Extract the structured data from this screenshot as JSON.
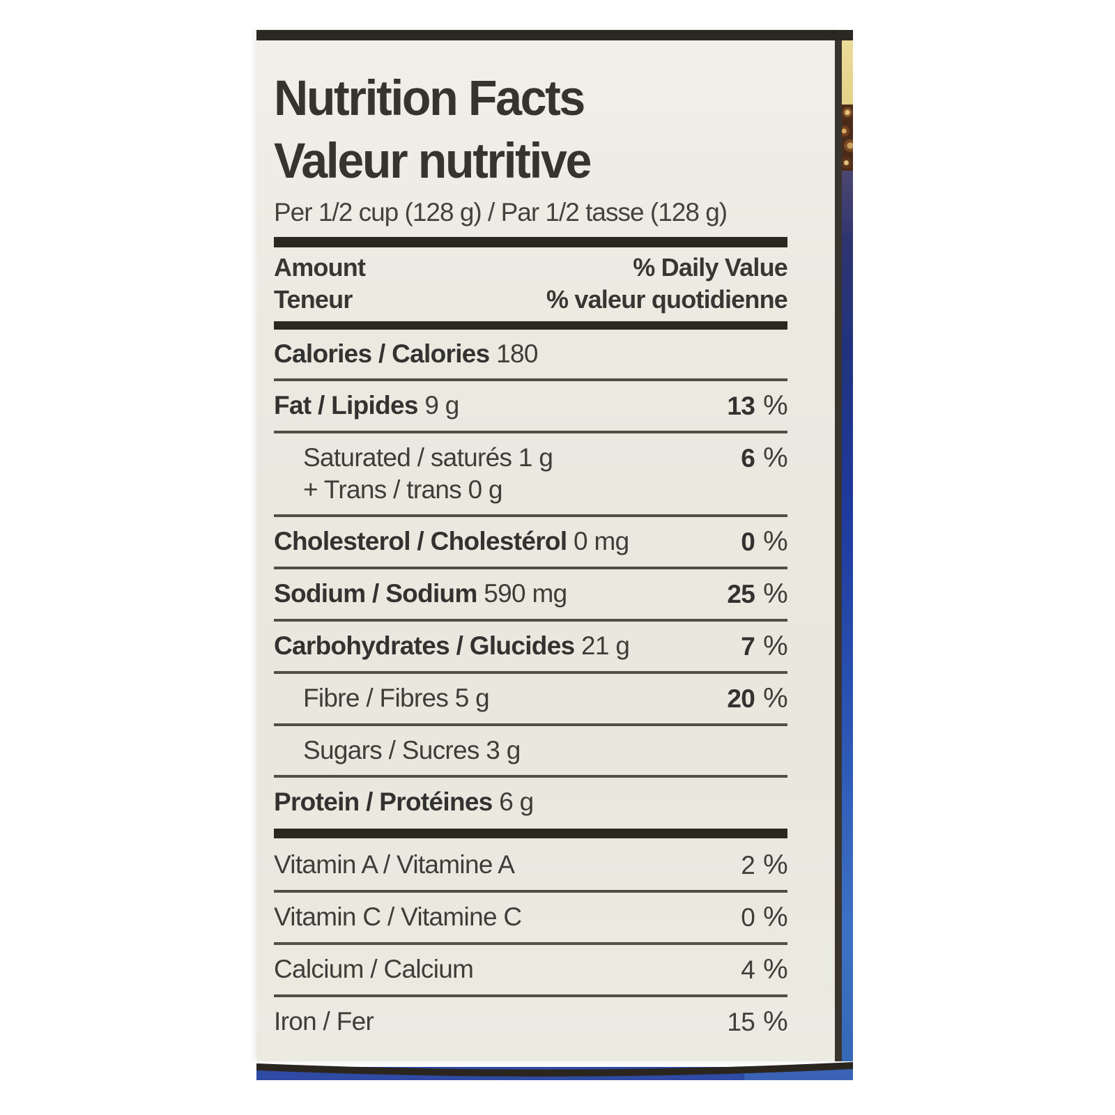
{
  "label": {
    "title_en": "Nutrition Facts",
    "title_fr": "Valeur nutritive",
    "serving_line": "Per 1/2 cup (128 g) / Par 1/2 tasse (128 g)",
    "header": {
      "amount_en": "Amount",
      "amount_fr": "Teneur",
      "daily_value_en": "% Daily Value",
      "daily_value_fr": "% valeur quotidienne"
    },
    "rows": [
      {
        "name_bold": "Calories / Calories",
        "amount": "180",
        "percent": null,
        "percent_bold": false,
        "indent": false,
        "sep_after": "single"
      },
      {
        "name_bold": "Fat / Lipides",
        "amount": "9 g",
        "percent": "13 %",
        "percent_bold": true,
        "indent": false,
        "sep_after": "single"
      },
      {
        "name": "Saturated / saturés 1 g",
        "line2": "+ Trans / trans 0 g",
        "percent": "6 %",
        "percent_bold": true,
        "indent": true,
        "sep_after": "single"
      },
      {
        "name_bold": "Cholesterol / Cholestérol",
        "amount": "0 mg",
        "percent": "0 %",
        "percent_bold": true,
        "indent": false,
        "sep_after": "single"
      },
      {
        "name_bold": "Sodium / Sodium",
        "amount": "590 mg",
        "percent": "25 %",
        "percent_bold": true,
        "indent": false,
        "sep_after": "single"
      },
      {
        "name_bold": "Carbohydrates / Glucides",
        "amount": "21 g",
        "percent": "7 %",
        "percent_bold": true,
        "indent": false,
        "sep_after": "single"
      },
      {
        "name": "Fibre / Fibres 5 g",
        "percent": "20 %",
        "percent_bold": true,
        "indent": true,
        "sep_after": "single"
      },
      {
        "name": "Sugars / Sucres 3 g",
        "percent": null,
        "percent_bold": false,
        "indent": true,
        "sep_after": "single"
      },
      {
        "name_bold": "Protein / Protéines",
        "amount": "6 g",
        "percent": null,
        "percent_bold": false,
        "indent": false,
        "sep_after": "thick"
      },
      {
        "name": "Vitamin A / Vitamine A",
        "percent": "2 %",
        "percent_bold": false,
        "indent": false,
        "sep_after": "single"
      },
      {
        "name": "Vitamin C / Vitamine C",
        "percent": "0 %",
        "percent_bold": false,
        "indent": false,
        "sep_after": "single"
      },
      {
        "name": "Calcium / Calcium",
        "percent": "4 %",
        "percent_bold": false,
        "indent": false,
        "sep_after": "single"
      },
      {
        "name": "Iron / Fer",
        "percent": "15 %",
        "percent_bold": false,
        "indent": false,
        "sep_after": "none"
      }
    ],
    "colors": {
      "label_background": "#ebe9e0",
      "text": "#3f3d38",
      "rule": "#514e46",
      "thick_bar": "#2b2822",
      "can_blue": "#2b4aa6",
      "can_yellow": "#e8d792",
      "rings_brown": "#4a2a18"
    }
  }
}
